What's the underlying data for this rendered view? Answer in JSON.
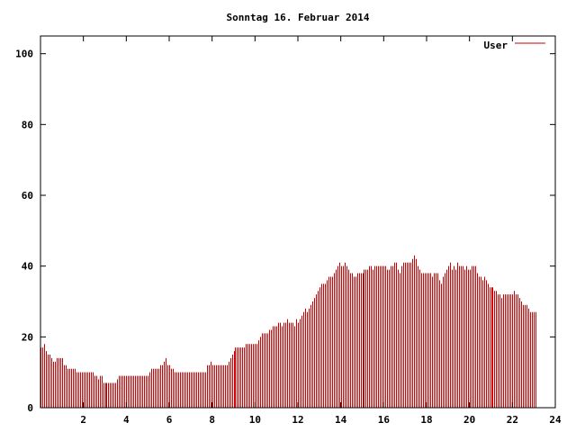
{
  "chart_data": {
    "type": "bar",
    "title": "Sonntag 16. Februar 2014",
    "xlabel": "",
    "ylabel": "",
    "xlim": [
      0,
      24
    ],
    "ylim": [
      0,
      105
    ],
    "x_ticks": [
      "2",
      "4",
      "6",
      "8",
      "10",
      "12",
      "14",
      "16",
      "18",
      "20",
      "22",
      "24"
    ],
    "y_ticks": [
      "0",
      "20",
      "40",
      "60",
      "80",
      "100"
    ],
    "grid": false,
    "legend_position": "top-right",
    "series": [
      {
        "name": "User",
        "color": "#cc0000",
        "x_interval_minutes": 5,
        "values": [
          17,
          17,
          18,
          16,
          15,
          15,
          14,
          13,
          13,
          14,
          14,
          14,
          14,
          12,
          12,
          11,
          11,
          11,
          11,
          11,
          10,
          10,
          10,
          10,
          10,
          10,
          10,
          10,
          10,
          10,
          9,
          9,
          8,
          9,
          9,
          7,
          7,
          7,
          7,
          7,
          7,
          7,
          7,
          8,
          9,
          9,
          9,
          9,
          9,
          9,
          9,
          9,
          9,
          9,
          9,
          9,
          9,
          9,
          9,
          9,
          9,
          10,
          11,
          11,
          11,
          11,
          11,
          12,
          12,
          13,
          14,
          12,
          12,
          11,
          11,
          10,
          10,
          10,
          10,
          10,
          10,
          10,
          10,
          10,
          10,
          10,
          10,
          10,
          10,
          10,
          10,
          10,
          10,
          12,
          12,
          13,
          12,
          12,
          12,
          12,
          12,
          12,
          12,
          12,
          12,
          13,
          14,
          15,
          16,
          17,
          17,
          17,
          17,
          17,
          17,
          18,
          18,
          18,
          18,
          18,
          18,
          18,
          19,
          20,
          21,
          21,
          21,
          21,
          22,
          22,
          23,
          23,
          23,
          24,
          24,
          23,
          24,
          24,
          25,
          24,
          24,
          24,
          23,
          25,
          24,
          25,
          26,
          27,
          28,
          27,
          28,
          29,
          30,
          31,
          32,
          33,
          34,
          35,
          35,
          35,
          36,
          37,
          37,
          37,
          38,
          39,
          40,
          41,
          40,
          40,
          41,
          40,
          39,
          38,
          38,
          37,
          37,
          38,
          38,
          38,
          38,
          39,
          39,
          39,
          40,
          40,
          39,
          40,
          40,
          40,
          40,
          40,
          40,
          40,
          39,
          39,
          40,
          40,
          41,
          41,
          39,
          38,
          40,
          41,
          41,
          41,
          41,
          41,
          42,
          43,
          42,
          40,
          39,
          38,
          38,
          38,
          38,
          38,
          38,
          37,
          38,
          38,
          38,
          36,
          35,
          37,
          38,
          39,
          40,
          41,
          39,
          40,
          39,
          41,
          40,
          40,
          40,
          39,
          40,
          39,
          39,
          40,
          40,
          40,
          38,
          37,
          37,
          36,
          37,
          36,
          35,
          34,
          34,
          34,
          33,
          33,
          32,
          32,
          31,
          32,
          32,
          32,
          32,
          32,
          32,
          33,
          32,
          32,
          31,
          30,
          29,
          29,
          29,
          28,
          27,
          27,
          27,
          27
        ]
      }
    ]
  }
}
